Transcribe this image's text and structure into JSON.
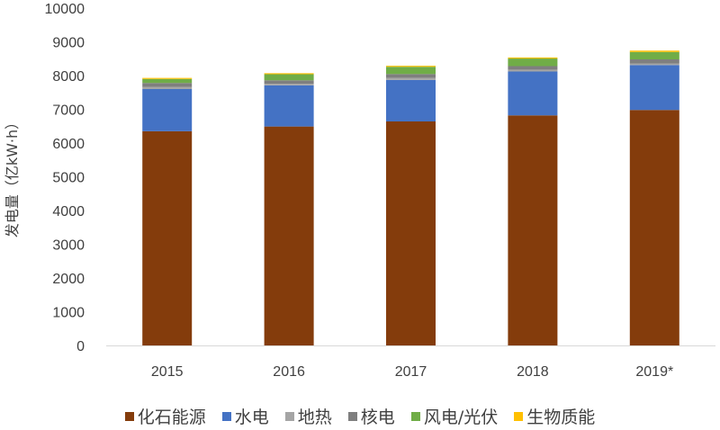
{
  "chart_data": {
    "type": "bar",
    "stacked": true,
    "title": "",
    "xlabel": "",
    "ylabel": "发电量（亿kW·h）",
    "ylim": [
      0,
      10000
    ],
    "yticks": [
      0,
      1000,
      2000,
      3000,
      4000,
      5000,
      6000,
      7000,
      8000,
      9000,
      10000
    ],
    "grid": false,
    "legend_position": "bottom",
    "categories": [
      "2015",
      "2016",
      "2017",
      "2018",
      "2019*"
    ],
    "series": [
      {
        "name": "化石能源",
        "color": "#843C0C",
        "values": [
          6350,
          6490,
          6640,
          6820,
          6980
        ]
      },
      {
        "name": "水电",
        "color": "#4472C4",
        "values": [
          1250,
          1220,
          1230,
          1300,
          1330
        ]
      },
      {
        "name": "地热",
        "color": "#A5A5A5",
        "values": [
          60,
          50,
          60,
          55,
          50
        ]
      },
      {
        "name": "核电",
        "color": "#7F7F7F",
        "values": [
          120,
          100,
          115,
          105,
          120
        ]
      },
      {
        "name": "风电/光伏",
        "color": "#70AD47",
        "values": [
          120,
          180,
          215,
          225,
          220
        ]
      },
      {
        "name": "生物质能",
        "color": "#FFC000",
        "values": [
          30,
          30,
          30,
          30,
          40
        ]
      }
    ]
  }
}
